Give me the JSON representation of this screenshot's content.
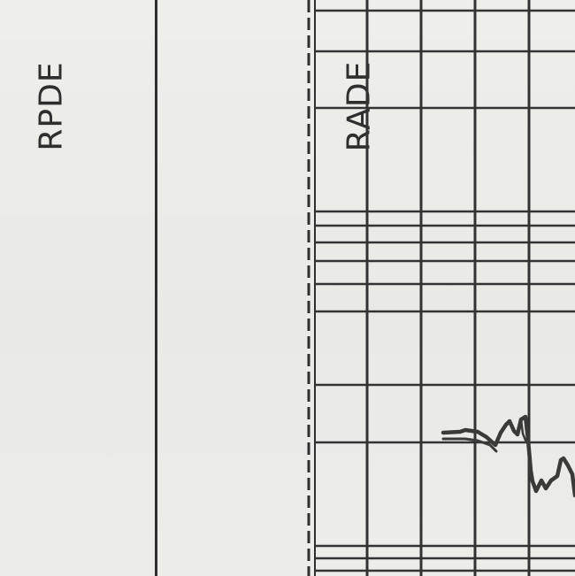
{
  "tracks": {
    "rpde_label": "RPDE",
    "rade_label": "RADE"
  },
  "colors": {
    "paper": "#ebebe8",
    "ink": "#2f2f2f"
  }
}
